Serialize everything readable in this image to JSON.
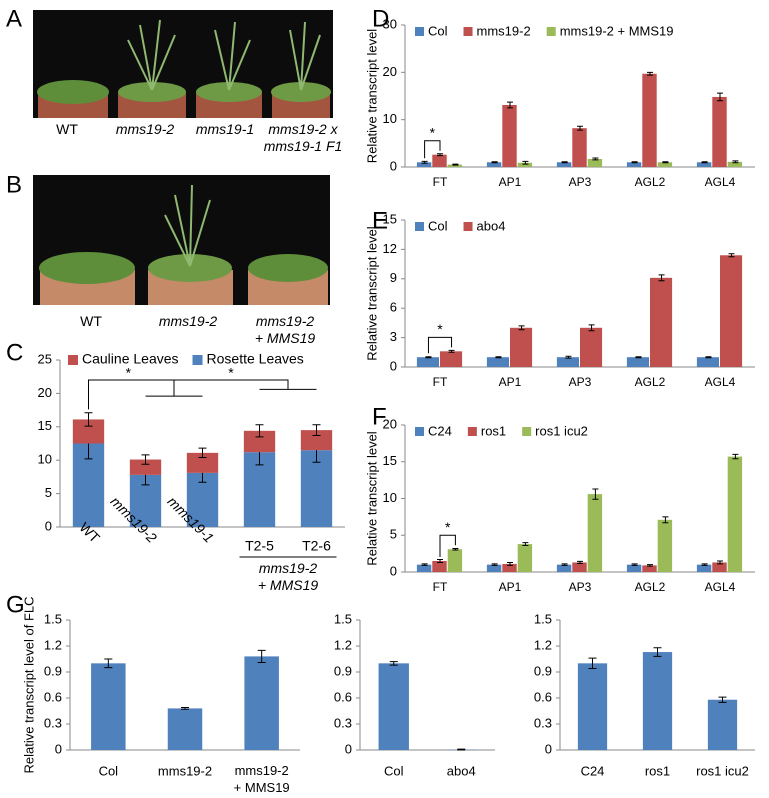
{
  "panel_labels": [
    "A",
    "B",
    "C",
    "D",
    "E",
    "F",
    "G"
  ],
  "photo_a": {
    "captions": [
      [
        "WT"
      ],
      [
        "mms19-2"
      ],
      [
        "mms19-1"
      ],
      [
        "mms19-2 x",
        "mms19-1 F1"
      ]
    ]
  },
  "photo_b": {
    "captions": [
      [
        "WT"
      ],
      [
        "mms19-2"
      ],
      [
        "mms19-2",
        "+ MMS19"
      ]
    ]
  },
  "chart_data": [
    {
      "type": "stacked_bar",
      "categories": [
        "WT",
        "mms19-2",
        "mms19-1",
        "T2-5",
        "T2-6"
      ],
      "group_label": [
        "mms19-2",
        "+ MMS19"
      ],
      "series": [
        {
          "name": "Rosette Leaves",
          "color": "#4f81bd",
          "values": [
            12.5,
            7.8,
            8.1,
            11.2,
            11.5
          ],
          "errors": [
            2.3,
            1.5,
            1.4,
            1.9,
            1.8
          ]
        },
        {
          "name": "Cauline Leaves",
          "color": "#c0504d",
          "values": [
            3.6,
            2.3,
            3.0,
            3.2,
            3.0
          ],
          "errors": [
            1.0,
            0.7,
            0.7,
            0.9,
            0.8
          ]
        }
      ],
      "ylim": [
        0,
        25
      ],
      "yticks": [
        0,
        5,
        10,
        15,
        20,
        25
      ],
      "annotations": [
        "*",
        "*"
      ]
    },
    {
      "type": "bar",
      "categories": [
        "FT",
        "AP1",
        "AP3",
        "AGL2",
        "AGL4"
      ],
      "ylabel": "Relative transcript level",
      "series": [
        {
          "name": "Col",
          "color": "#4f81bd",
          "values": [
            1,
            1,
            1,
            1,
            1
          ],
          "errors": [
            0.2,
            0.1,
            0.1,
            0.1,
            0.1
          ]
        },
        {
          "name": "mms19-2",
          "color": "#c0504d",
          "values": [
            2.6,
            13.1,
            8.2,
            19.7,
            14.8
          ],
          "errors": [
            0.2,
            0.6,
            0.4,
            0.3,
            0.8
          ]
        },
        {
          "name": "mms19-2 + MMS19",
          "color": "#9bbb59",
          "values": [
            0.5,
            0.9,
            1.7,
            1.0,
            1.1
          ],
          "errors": [
            0.1,
            0.3,
            0.2,
            0.1,
            0.2
          ]
        }
      ],
      "ylim": [
        0,
        30
      ],
      "yticks": [
        0,
        10,
        20,
        30
      ],
      "annotations": [
        "*"
      ]
    },
    {
      "type": "bar",
      "categories": [
        "FT",
        "AP1",
        "AP3",
        "AGL2",
        "AGL4"
      ],
      "ylabel": "Relative transcript level",
      "series": [
        {
          "name": "Col",
          "color": "#4f81bd",
          "values": [
            1,
            1,
            1,
            1,
            1
          ],
          "errors": [
            0.05,
            0.05,
            0.1,
            0.05,
            0.05
          ]
        },
        {
          "name": "abo4",
          "color": "#c0504d",
          "values": [
            1.6,
            4.0,
            4.0,
            9.1,
            11.4
          ],
          "errors": [
            0.1,
            0.2,
            0.3,
            0.3,
            0.15
          ]
        }
      ],
      "ylim": [
        0,
        15
      ],
      "yticks": [
        0,
        3,
        6,
        9,
        12,
        15
      ],
      "annotations": [
        "*"
      ]
    },
    {
      "type": "bar",
      "categories": [
        "FT",
        "AP1",
        "AP3",
        "AGL2",
        "AGL4"
      ],
      "ylabel": "Relative transcript level",
      "series": [
        {
          "name": "C24",
          "color": "#4f81bd",
          "values": [
            1,
            1,
            1,
            1,
            1
          ],
          "errors": [
            0.1,
            0.1,
            0.1,
            0.1,
            0.1
          ]
        },
        {
          "name": "ros1",
          "color": "#c0504d",
          "values": [
            1.5,
            1.1,
            1.3,
            0.9,
            1.3
          ],
          "errors": [
            0.2,
            0.2,
            0.15,
            0.1,
            0.2
          ]
        },
        {
          "name": "ros1 icu2",
          "color": "#9bbb59",
          "values": [
            3.1,
            3.8,
            10.6,
            7.1,
            15.7
          ],
          "errors": [
            0.1,
            0.2,
            0.7,
            0.4,
            0.3
          ]
        }
      ],
      "ylim": [
        0,
        20
      ],
      "yticks": [
        0,
        5,
        10,
        15,
        20
      ],
      "annotations": [
        "*"
      ]
    },
    {
      "type": "bar",
      "categories": [
        "Col",
        "mms19-2",
        [
          "mms19-2",
          "+ MMS19"
        ]
      ],
      "ylabel": "Relative transcript level of FLC",
      "color": "#4f81bd",
      "values": [
        1.0,
        0.48,
        1.08
      ],
      "errors": [
        0.05,
        0.01,
        0.07
      ],
      "ylim": [
        0,
        1.5
      ],
      "yticks": [
        0,
        0.3,
        0.6,
        0.9,
        1.2,
        1.5
      ]
    },
    {
      "type": "bar",
      "categories": [
        "Col",
        "abo4"
      ],
      "color": "#4f81bd",
      "values": [
        1.0,
        0.005
      ],
      "errors": [
        0.02,
        0.005
      ],
      "ylim": [
        0,
        1.5
      ],
      "yticks": [
        0,
        0.3,
        0.6,
        0.9,
        1.2,
        1.5
      ]
    },
    {
      "type": "bar",
      "categories": [
        "C24",
        "ros1",
        "ros1 icu2"
      ],
      "color": "#4f81bd",
      "values": [
        1.0,
        1.13,
        0.58
      ],
      "errors": [
        0.06,
        0.05,
        0.03
      ],
      "ylim": [
        0,
        1.5
      ],
      "yticks": [
        0,
        0.3,
        0.6,
        0.9,
        1.2,
        1.5
      ]
    }
  ]
}
